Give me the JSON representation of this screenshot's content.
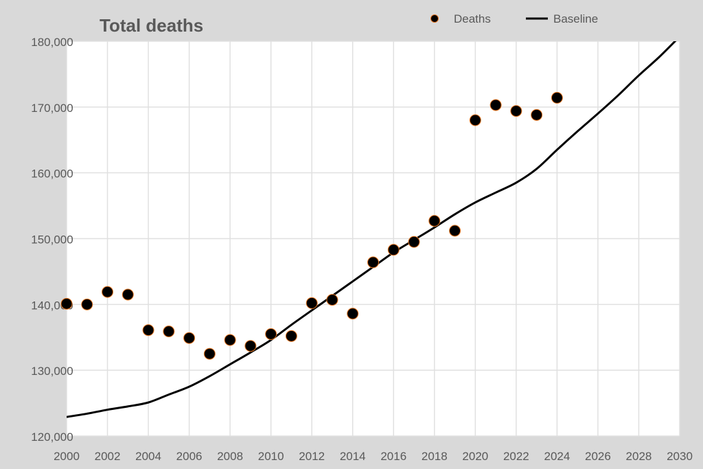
{
  "chart_data": {
    "type": "scatter",
    "title": "Total deaths",
    "xlabel": "",
    "ylabel": "",
    "xlim": [
      2000,
      2030
    ],
    "ylim": [
      120000,
      180000
    ],
    "x_ticks": [
      "2000",
      "2002",
      "2004",
      "2006",
      "2008",
      "2010",
      "2012",
      "2014",
      "2016",
      "2018",
      "2020",
      "2022",
      "2024",
      "2026",
      "2028",
      "2030"
    ],
    "y_ticks": [
      "120,000",
      "130,000",
      "140,000",
      "150,000",
      "160,000",
      "170,000",
      "180,000"
    ],
    "grid": true,
    "legend_placement": "top-right",
    "series": [
      {
        "name": "Deaths",
        "type": "scatter",
        "color": "#000000",
        "edge_color": "#e87722",
        "x": [
          2000,
          2001,
          2002,
          2003,
          2004,
          2005,
          2006,
          2007,
          2008,
          2009,
          2010,
          2011,
          2012,
          2013,
          2014,
          2015,
          2016,
          2017,
          2018,
          2019,
          2020,
          2021,
          2022,
          2023,
          2024
        ],
        "values": [
          140100,
          140000,
          141900,
          141500,
          136100,
          135900,
          134900,
          132500,
          134600,
          133700,
          135500,
          135200,
          140200,
          140700,
          138600,
          146400,
          148300,
          149500,
          152700,
          151200,
          168000,
          170300,
          169400,
          168800,
          171400
        ]
      },
      {
        "name": "Baseline",
        "type": "line",
        "color": "#000000",
        "x": [
          2000,
          2001,
          2002,
          2003,
          2004,
          2005,
          2006,
          2007,
          2008,
          2009,
          2010,
          2011,
          2012,
          2013,
          2014,
          2015,
          2016,
          2017,
          2018,
          2019,
          2020,
          2021,
          2022,
          2023,
          2024,
          2025,
          2026,
          2027,
          2028,
          2029,
          2030
        ],
        "values": [
          122900,
          123400,
          124000,
          124500,
          125100,
          126300,
          127500,
          129100,
          130900,
          132700,
          134600,
          136900,
          139100,
          141300,
          143500,
          145700,
          147900,
          149800,
          151700,
          153700,
          155500,
          157000,
          158500,
          160600,
          163500,
          166300,
          169000,
          171800,
          174800,
          177600,
          180700
        ]
      }
    ]
  }
}
